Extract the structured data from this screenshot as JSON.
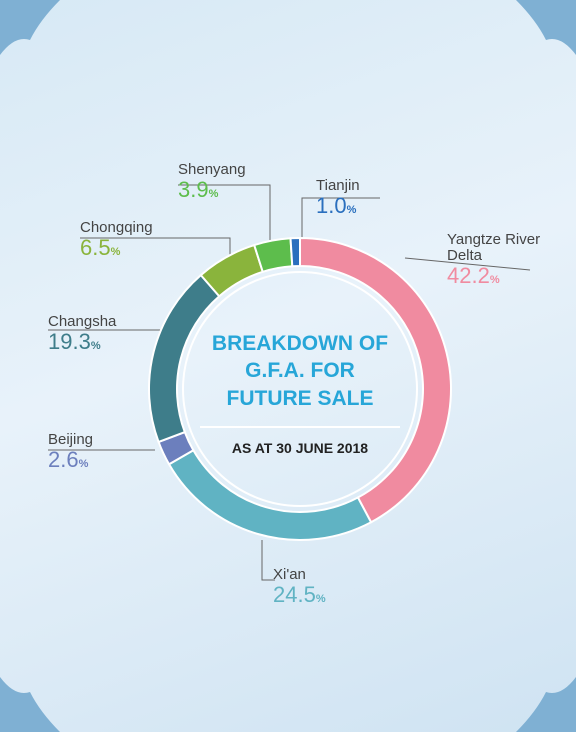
{
  "chart_data": {
    "type": "donut",
    "title": "BREAKDOWN OF G.F.A. FOR FUTURE SALE",
    "subtitle": "AS AT 30 JUNE 2018",
    "categories": [
      "Yangtze River Delta",
      "Xi'an",
      "Beijing",
      "Changsha",
      "Chongqing",
      "Shenyang",
      "Tianjin"
    ],
    "values": [
      42.2,
      24.5,
      2.6,
      19.3,
      6.5,
      3.9,
      1.0
    ],
    "value_labels": [
      "42.2",
      "24.5",
      "2.6",
      "19.3",
      "6.5",
      "3.9",
      "1.0"
    ],
    "unit": "%",
    "colors": [
      "#f08ba0",
      "#60b3c3",
      "#6c7fbd",
      "#3e7d8a",
      "#8ab43c",
      "#5dbd4c",
      "#2a6fbe"
    ]
  }
}
